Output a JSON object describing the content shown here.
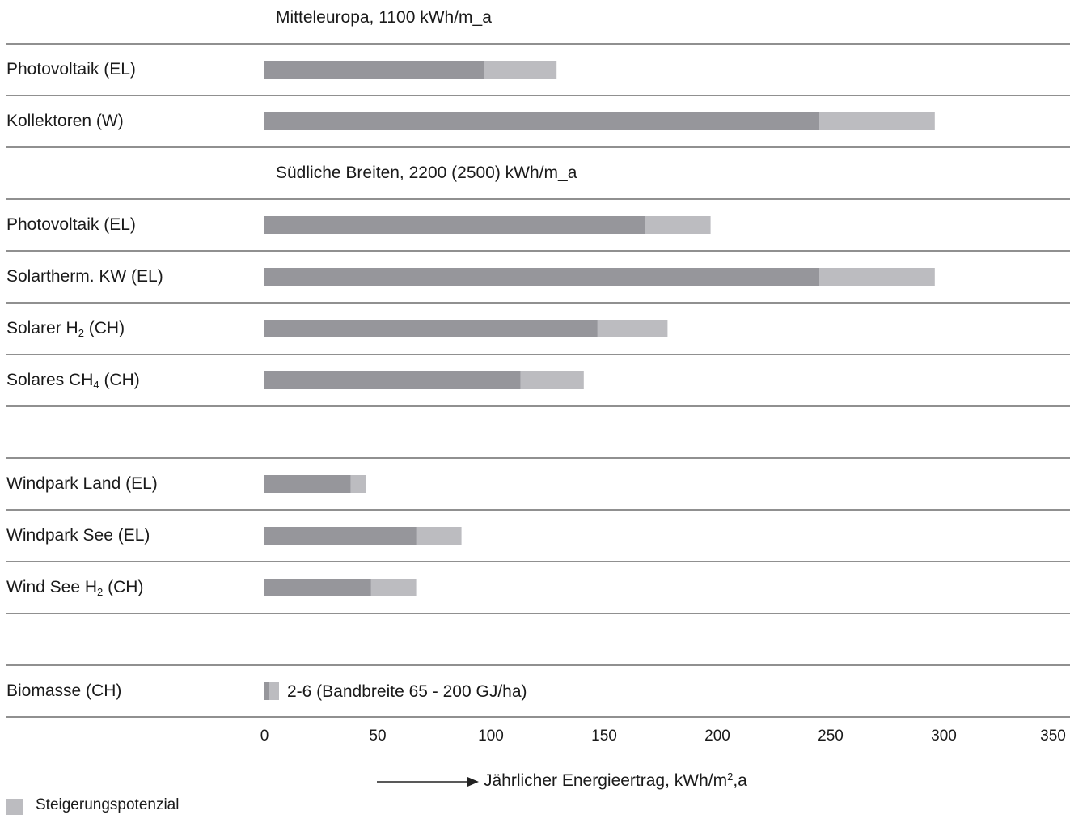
{
  "chart_data": {
    "type": "bar",
    "orientation": "horizontal",
    "stacked": true,
    "xlabel": "Jährlicher Energieertrag, kWh/m²,a",
    "xlim": [
      0,
      350
    ],
    "xticks": [
      0,
      50,
      100,
      150,
      200,
      250,
      300,
      350
    ],
    "legend": [
      {
        "name": "Steigerungspotenzial",
        "color": "#bcbcc0"
      }
    ],
    "colors": {
      "current": "#96969b",
      "potential": "#bcbcc0",
      "rule": "#222222"
    },
    "sections": [
      {
        "label": "Mitteleuropa, 1100 kWh/m_a"
      },
      {
        "label": "Südliche Breiten, 2200 (2500) kWh/m_a"
      },
      {
        "label": ""
      },
      {
        "label": ""
      }
    ],
    "rows": [
      {
        "section": 0,
        "label": "Photovoltaik (EL)",
        "current": 97,
        "potential_total": 129
      },
      {
        "section": 0,
        "label": "Kollektoren (W)",
        "current": 245,
        "potential_total": 296
      },
      {
        "section": 1,
        "label": "Photovoltaik (EL)",
        "current": 168,
        "potential_total": 197
      },
      {
        "section": 1,
        "label": "Solartherm. KW (EL)",
        "current": 245,
        "potential_total": 296
      },
      {
        "section": 1,
        "label": "Solarer H",
        "label_sub": "2",
        "label_suffix": " (CH)",
        "current": 147,
        "potential_total": 178
      },
      {
        "section": 1,
        "label": "Solares CH",
        "label_sub": "4",
        "label_suffix": " (CH)",
        "current": 113,
        "potential_total": 141
      },
      {
        "section": 2,
        "label": "Windpark Land (EL)",
        "current": 38,
        "potential_total": 45
      },
      {
        "section": 2,
        "label": "Windpark See (EL)",
        "current": 67,
        "potential_total": 87
      },
      {
        "section": 2,
        "label": "Wind See H",
        "label_sub": "2",
        "label_suffix": " (CH)",
        "current": 47,
        "potential_total": 67
      },
      {
        "section": 3,
        "label": "Biomasse (CH)",
        "current": 2,
        "potential_total": 6,
        "note": "2-6  (Bandbreite 65 - 200 GJ/ha)"
      }
    ]
  }
}
